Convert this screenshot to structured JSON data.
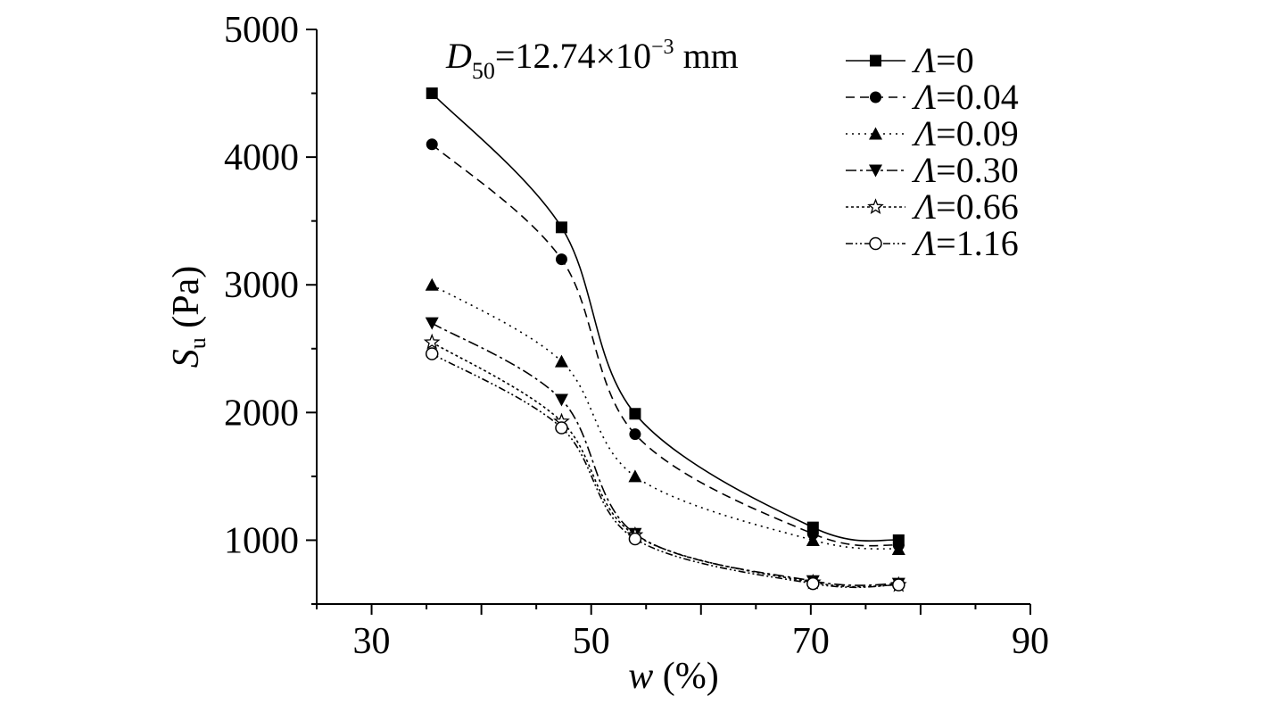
{
  "chart_data": {
    "type": "line",
    "xlabel": {
      "var": "w",
      "unit": " (%)"
    },
    "ylabel": {
      "var": "S",
      "sub": "u",
      "unit": " (Pa)"
    },
    "xlim": [
      25,
      90
    ],
    "ylim": [
      500,
      5000
    ],
    "x_ticks": [
      30,
      50,
      70,
      90
    ],
    "y_ticks": [
      1000,
      2000,
      3000,
      4000,
      5000
    ],
    "grid": false,
    "legend_position": "top-right",
    "annotation": {
      "var": "D",
      "sub": "50",
      "eq": "=12.74×10",
      "sup": "−3",
      "unit": " mm"
    },
    "x": [
      35.5,
      47.3,
      54.0,
      70.2,
      78.0
    ],
    "series": [
      {
        "name": "Λ=0",
        "symbol": "Λ",
        "value_text": "=0",
        "marker": "square",
        "dash": "none",
        "values": [
          4500,
          3450,
          1990,
          1100,
          1000
        ]
      },
      {
        "name": "Λ=0.04",
        "symbol": "Λ",
        "value_text": "=0.04",
        "marker": "circle",
        "dash": "10,6",
        "values": [
          4100,
          3200,
          1830,
          1050,
          960
        ]
      },
      {
        "name": "Λ=0.09",
        "symbol": "Λ",
        "value_text": "=0.09",
        "marker": "triangle-up",
        "dash": "2,5",
        "values": [
          3000,
          2400,
          1500,
          1000,
          930
        ]
      },
      {
        "name": "Λ=0.30",
        "symbol": "Λ",
        "value_text": "=0.30",
        "marker": "triangle-down",
        "dash": "12,4,3,4",
        "values": [
          2700,
          2100,
          1050,
          680,
          660
        ]
      },
      {
        "name": "Λ=0.66",
        "symbol": "Λ",
        "value_text": "=0.66",
        "marker": "star",
        "dash": "3,3",
        "values": [
          2550,
          1930,
          1040,
          670,
          650
        ]
      },
      {
        "name": "Λ=1.16",
        "symbol": "Λ",
        "value_text": "=1.16",
        "marker": "open-circle",
        "dash": "8,3,2,3,2,3",
        "values": [
          2460,
          1880,
          1010,
          660,
          650
        ]
      }
    ]
  }
}
